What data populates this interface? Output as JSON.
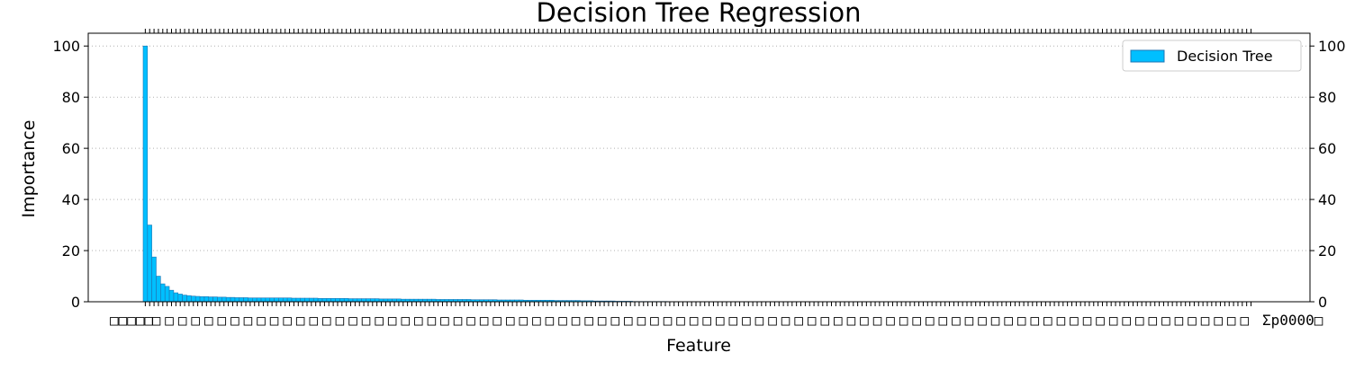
{
  "chart_data": {
    "type": "bar",
    "title": "Decision Tree Regression",
    "xlabel": "Feature",
    "ylabel": "Importance",
    "ylim": [
      0,
      105
    ],
    "yticks": [
      "0",
      "20",
      "40",
      "60",
      "80",
      "100"
    ],
    "y2ticks": [
      "0",
      "20",
      "40",
      "60",
      "80",
      "100"
    ],
    "grid": "horizontal dotted",
    "legend": {
      "position": "top-right",
      "entries": [
        "Decision Tree"
      ]
    },
    "bar_color": "#00bfff",
    "bar_edge_color": "#1f77b4",
    "xtick_labels_left": "□□□□□",
    "xtick_labels_right": "Σp0000□",
    "series": [
      {
        "name": "Decision Tree",
        "values": [
          100,
          30,
          17.5,
          10,
          7,
          6,
          4.5,
          3.5,
          3,
          2.6,
          2.4,
          2.2,
          2.1,
          2.0,
          2.0,
          1.9,
          1.9,
          1.8,
          1.8,
          1.7,
          1.7,
          1.6,
          1.6,
          1.6,
          1.5,
          1.5,
          1.5,
          1.5,
          1.5,
          1.5,
          1.5,
          1.5,
          1.5,
          1.5,
          1.4,
          1.4,
          1.4,
          1.4,
          1.4,
          1.4,
          1.3,
          1.3,
          1.3,
          1.3,
          1.3,
          1.3,
          1.3,
          1.2,
          1.2,
          1.2,
          1.2,
          1.2,
          1.2,
          1.2,
          1.1,
          1.1,
          1.1,
          1.1,
          1.1,
          1.0,
          1.0,
          1.0,
          1.0,
          1.0,
          1.0,
          1.0,
          1.0,
          0.9,
          0.9,
          0.9,
          0.9,
          0.9,
          0.9,
          0.9,
          0.9,
          0.8,
          0.8,
          0.8,
          0.8,
          0.8,
          0.8,
          0.7,
          0.7,
          0.7,
          0.7,
          0.7,
          0.7,
          0.6,
          0.6,
          0.6,
          0.6,
          0.6,
          0.6,
          0.6,
          0.5,
          0.5,
          0.5,
          0.5,
          0.5,
          0.5,
          0.4,
          0.4,
          0.4,
          0.3,
          0.3,
          0.3,
          0.3,
          0.3,
          0.2,
          0.2,
          0.2,
          0.2,
          0.1,
          0.1,
          0.1,
          0.1,
          0.1,
          0.1,
          0.1,
          0.1,
          0.05,
          0.05,
          0.05,
          0.05,
          0.05,
          0.05,
          0.05,
          0.05,
          0.05,
          0.05,
          0.02,
          0.02,
          0.02,
          0.02,
          0.02,
          0.02,
          0.02,
          0.02,
          0.02,
          0.02,
          0.02,
          0.02,
          0.02,
          0.02,
          0.02,
          0.02,
          0.01,
          0.01,
          0.01,
          0.01,
          0.01,
          0.01,
          0.01,
          0.01,
          0.01,
          0.01,
          0.01,
          0.01,
          0.01,
          0.01,
          0.01,
          0.01,
          0.01,
          0.01,
          0.01,
          0.01,
          0.01,
          0.01,
          0.01,
          0.01,
          0.01,
          0.01,
          0.01,
          0.01,
          0.01,
          0.01,
          0.01,
          0.01,
          0.01,
          0.01,
          0.01,
          0.01,
          0.01,
          0.01,
          0.01,
          0.01,
          0.01,
          0.01,
          0.01,
          0.01,
          0.01,
          0.01,
          0.01,
          0.01,
          0.01,
          0.01,
          0.01,
          0.01,
          0.01,
          0.01,
          0.01,
          0.01,
          0.01,
          0.01,
          0.01,
          0.01,
          0.01,
          0.01,
          0.01,
          0.01,
          0.01,
          0.01,
          0.01,
          0.01,
          0.01,
          0.01,
          0.01,
          0.01,
          0.01,
          0.01,
          0.01,
          0.01,
          0.01,
          0.01,
          0.01,
          0.01,
          0.01,
          0.01,
          0.01,
          0.01,
          0.01,
          0.01,
          0.01,
          0.01,
          0.01,
          0.01,
          0.01,
          0.01,
          0.01,
          0.01,
          0.01,
          0.01,
          0.01,
          0.01,
          0.01,
          0.01,
          0.01,
          0.01,
          0.01,
          0.01,
          0.01,
          0.01,
          0.01,
          0.01
        ]
      }
    ]
  }
}
